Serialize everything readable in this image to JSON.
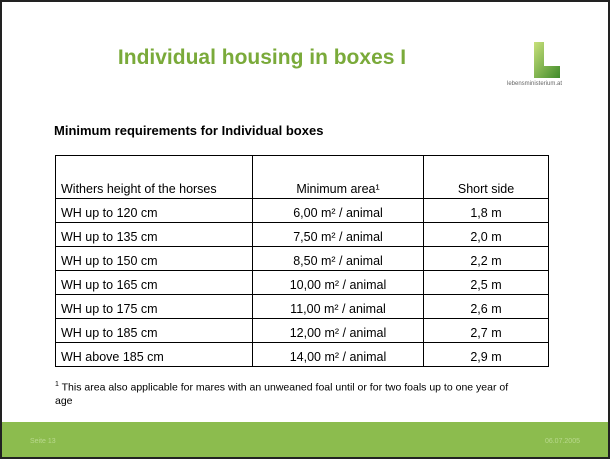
{
  "slide": {
    "title": "Individual housing in boxes I",
    "logo_text": "lebensministerium.at",
    "subtitle": "Minimum requirements for Individual boxes",
    "table": {
      "header": [
        "Withers height of the horses",
        "Minimum area¹",
        "Short side"
      ],
      "rows": [
        [
          "WH up to 120 cm",
          "6,00 m² / animal",
          "1,8 m"
        ],
        [
          "WH up to 135 cm",
          "7,50 m² / animal",
          "2,0 m"
        ],
        [
          "WH up to 150 cm",
          "8,50 m² / animal",
          "2,2 m"
        ],
        [
          "WH up to 165 cm",
          "10,00 m² / animal",
          "2,5 m"
        ],
        [
          "WH up to 175 cm",
          "11,00 m² / animal",
          "2,6 m"
        ],
        [
          "WH up to 185 cm",
          "12,00 m² / animal",
          "2,7 m"
        ],
        [
          "WH above 185 cm",
          "14,00 m² / animal",
          "2,9 m"
        ]
      ]
    },
    "footnote": {
      "marker": "1",
      "text": "This area also applicable for mares with an unweaned foal until or for two foals up to one year of age"
    },
    "footer": {
      "page": "Seite 13",
      "date": "06.07.2005"
    }
  }
}
